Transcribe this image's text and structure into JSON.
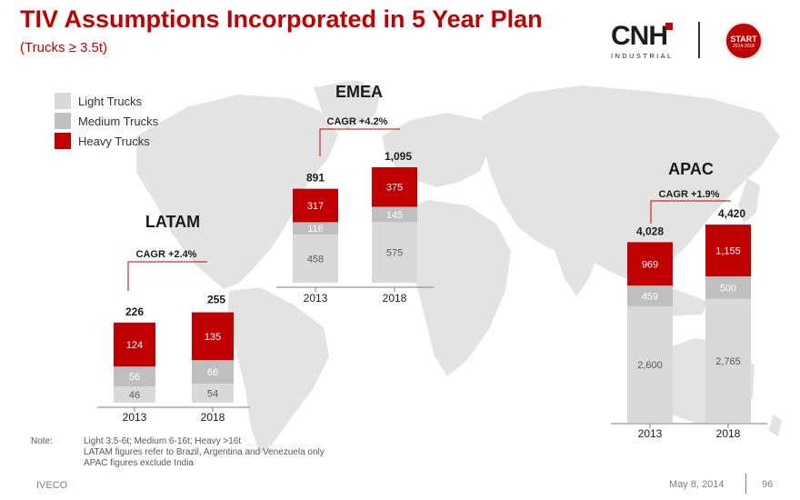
{
  "header": {
    "title": "TIV Assumptions Incorporated in 5 Year Plan",
    "subtitle": "(Trucks  ≥  3.5t)"
  },
  "logo": {
    "word": "CNH",
    "sub": "INDUSTRIAL",
    "icon": "cnh-logo-icon"
  },
  "badge": {
    "line1": "START",
    "line2": "2014-2018"
  },
  "legend": {
    "items": [
      {
        "label": "Light Trucks",
        "color": "#d9d9d9"
      },
      {
        "label": "Medium Trucks",
        "color": "#bfbfbf"
      },
      {
        "label": "Heavy Trucks",
        "color": "#c00000"
      }
    ]
  },
  "colors": {
    "light": "#d9d9d9",
    "medium": "#bfbfbf",
    "heavy": "#c00000",
    "map": "#e3e3e3",
    "accent": "#c00000"
  },
  "chart_data": [
    {
      "type": "bar",
      "stacked": true,
      "title": "LATAM",
      "annotation": "CAGR +2.4%",
      "categories": [
        "2013",
        "2018"
      ],
      "series": [
        {
          "name": "Light Trucks",
          "values": [
            46,
            54
          ]
        },
        {
          "name": "Medium Trucks",
          "values": [
            56,
            66
          ]
        },
        {
          "name": "Heavy Trucks",
          "values": [
            124,
            135
          ]
        }
      ],
      "totals": [
        226,
        255
      ]
    },
    {
      "type": "bar",
      "stacked": true,
      "title": "EMEA",
      "annotation": "CAGR +4.2%",
      "categories": [
        "2013",
        "2018"
      ],
      "series": [
        {
          "name": "Light Trucks",
          "values": [
            458,
            575
          ]
        },
        {
          "name": "Medium Trucks",
          "values": [
            116,
            145
          ]
        },
        {
          "name": "Heavy Trucks",
          "values": [
            317,
            375
          ]
        }
      ],
      "totals": [
        "891",
        "1,095"
      ]
    },
    {
      "type": "bar",
      "stacked": true,
      "title": "APAC",
      "annotation": "CAGR +1.9%",
      "categories": [
        "2013",
        "2018"
      ],
      "series": [
        {
          "name": "Light Trucks",
          "values": [
            2600,
            2765
          ],
          "labels": [
            "2,600",
            "2,765"
          ]
        },
        {
          "name": "Medium Trucks",
          "values": [
            459,
            500
          ],
          "labels": [
            "459",
            "500"
          ]
        },
        {
          "name": "Heavy Trucks",
          "values": [
            969,
            1155
          ],
          "labels": [
            "969",
            "1,155"
          ]
        }
      ],
      "totals": [
        "4,028",
        "4,420"
      ]
    }
  ],
  "note": {
    "label": "Note:",
    "lines": [
      "Light 3.5-6t; Medium 6-16t; Heavy >16t",
      "LATAM figures refer to Brazil, Argentina and Venezuela only",
      "APAC figures exclude India"
    ]
  },
  "footer": {
    "company": "IVECO",
    "date": "May 8, 2014",
    "page": "96"
  }
}
